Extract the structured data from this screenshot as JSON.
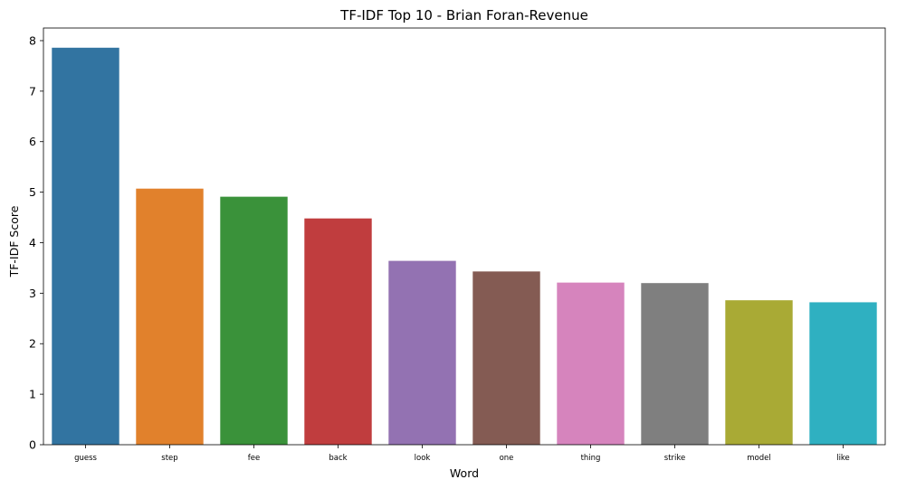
{
  "chart_data": {
    "type": "bar",
    "title": "TF-IDF Top 10 - Brian Foran-Revenue",
    "xlabel": "Word",
    "ylabel": "TF-IDF Score",
    "categories": [
      "guess",
      "step",
      "fee",
      "back",
      "look",
      "one",
      "thing",
      "strike",
      "model",
      "like"
    ],
    "values": [
      7.86,
      5.07,
      4.91,
      4.48,
      3.64,
      3.43,
      3.21,
      3.2,
      2.86,
      2.82
    ],
    "colors": [
      "#3274a1",
      "#e1812c",
      "#3a923a",
      "#c03d3e",
      "#9372b2",
      "#845b53",
      "#d684bd",
      "#7f7f7f",
      "#a9aa35",
      "#2fb0c1"
    ],
    "yticks": [
      0,
      1,
      2,
      3,
      4,
      5,
      6,
      7,
      8
    ],
    "ylim": [
      0,
      8.25
    ],
    "grid": false,
    "legend": "none"
  }
}
